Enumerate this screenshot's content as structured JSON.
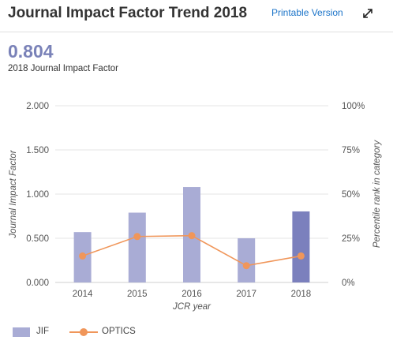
{
  "header": {
    "title": "Journal Impact Factor Trend 2018",
    "printable_label": "Printable Version",
    "expand_icon": "expand-arrows-icon"
  },
  "metric": {
    "value": "0.804",
    "label": "2018 Journal Impact Factor"
  },
  "chart_data": {
    "type": "bar",
    "xlabel": "JCR year",
    "ylabel": "Journal Impact Factor",
    "y2label": "Percentile rank in category",
    "categories": [
      "2014",
      "2015",
      "2016",
      "2017",
      "2018"
    ],
    "ylim": [
      0,
      2
    ],
    "y_ticks": [
      "0.000",
      "0.500",
      "1.000",
      "1.500",
      "2.000"
    ],
    "y2lim": [
      0,
      100
    ],
    "y2_ticks": [
      "0%",
      "25%",
      "50%",
      "75%",
      "100%"
    ],
    "grid": true,
    "legend_position": "bottom-left",
    "series": [
      {
        "name": "JIF",
        "kind": "bar",
        "axis": "left",
        "values": [
          0.57,
          0.79,
          1.08,
          0.5,
          0.804
        ],
        "color": "#a9acd5",
        "highlight_color": "#7b80bd",
        "highlight_index": 4
      },
      {
        "name": "OPTICS",
        "kind": "line",
        "axis": "right",
        "values": [
          15,
          26,
          26.5,
          9.5,
          15
        ],
        "color": "#f0965a"
      }
    ]
  }
}
